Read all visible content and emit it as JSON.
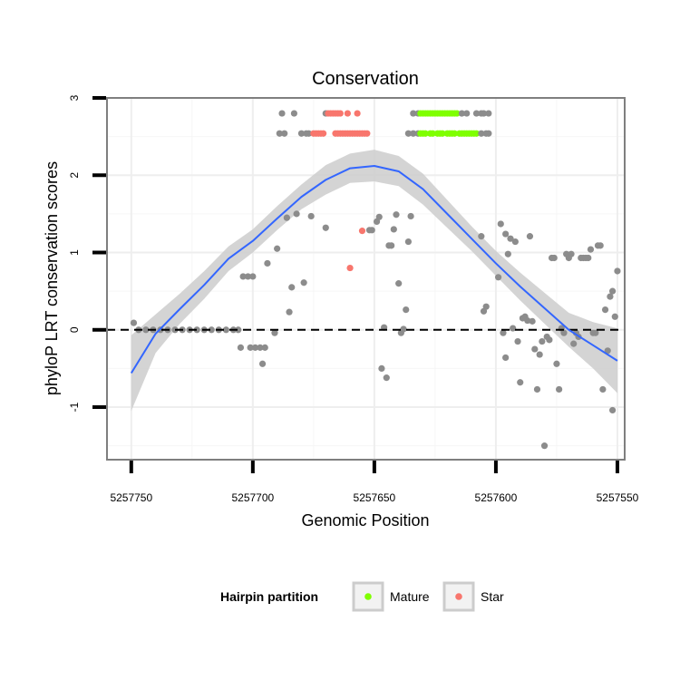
{
  "chart_data": {
    "type": "scatter",
    "title": "Conservation",
    "xlabel": "Genomic Position",
    "ylabel": "phyloP LRT conservation scores",
    "x_reversed": true,
    "xlim": [
      5257760,
      5257547
    ],
    "ylim": [
      -1.68,
      3.0
    ],
    "x_ticks": [
      5257750,
      5257700,
      5257650,
      5257600,
      5257550
    ],
    "x_tick_labels": [
      "5257750",
      "5257700",
      "5257650",
      "5257600",
      "5257550"
    ],
    "y_ticks": [
      -1,
      0,
      1,
      2,
      3
    ],
    "y_tick_labels": [
      "-1",
      "0",
      "1",
      "2",
      "3"
    ],
    "grid": true,
    "reference_line": {
      "y": 0,
      "style": "dashed",
      "color": "#000000"
    },
    "legend": {
      "title": "Hairpin partition",
      "placement": "bottom",
      "entries": [
        {
          "label": "Mature",
          "color": "#7fff00"
        },
        {
          "label": "Star",
          "color": "#f8766d"
        }
      ]
    },
    "colors": {
      "other": "#8c8c8c",
      "Mature": "#7fff00",
      "Star": "#f8766d",
      "smooth": "#3366ff",
      "band": "#cccccc"
    },
    "smooth_line": {
      "x": [
        5257750,
        5257740,
        5257730,
        5257720,
        5257710,
        5257700,
        5257690,
        5257680,
        5257670,
        5257660,
        5257650,
        5257640,
        5257630,
        5257620,
        5257610,
        5257600,
        5257590,
        5257580,
        5257570,
        5257560,
        5257550
      ],
      "y": [
        -0.56,
        -0.05,
        0.27,
        0.58,
        0.92,
        1.15,
        1.44,
        1.72,
        1.94,
        2.09,
        2.12,
        2.05,
        1.82,
        1.5,
        1.18,
        0.86,
        0.56,
        0.28,
        0.0,
        -0.2,
        -0.4
      ],
      "lower": [
        -1.05,
        -0.3,
        0.08,
        0.4,
        0.76,
        1.0,
        1.29,
        1.56,
        1.75,
        1.9,
        1.92,
        1.86,
        1.62,
        1.32,
        1.02,
        0.7,
        0.38,
        0.08,
        -0.22,
        -0.5,
        -0.82
      ],
      "upper": [
        -0.07,
        0.2,
        0.47,
        0.76,
        1.08,
        1.3,
        1.6,
        1.88,
        2.13,
        2.28,
        2.33,
        2.25,
        2.02,
        1.68,
        1.34,
        1.02,
        0.74,
        0.48,
        0.22,
        0.1,
        0.02
      ]
    },
    "points": [
      {
        "x": 5257749,
        "y": 0.09,
        "g": "other"
      },
      {
        "x": 5257747,
        "y": 0.0,
        "g": "other"
      },
      {
        "x": 5257744,
        "y": 0.0,
        "g": "other"
      },
      {
        "x": 5257741,
        "y": 0.0,
        "g": "other"
      },
      {
        "x": 5257738,
        "y": 0.0,
        "g": "other"
      },
      {
        "x": 5257735,
        "y": 0.0,
        "g": "other"
      },
      {
        "x": 5257732,
        "y": 0.0,
        "g": "other"
      },
      {
        "x": 5257729,
        "y": 0.0,
        "g": "other"
      },
      {
        "x": 5257726,
        "y": 0.0,
        "g": "other"
      },
      {
        "x": 5257723,
        "y": 0.0,
        "g": "other"
      },
      {
        "x": 5257720,
        "y": 0.0,
        "g": "other"
      },
      {
        "x": 5257717,
        "y": 0.0,
        "g": "other"
      },
      {
        "x": 5257714,
        "y": 0.0,
        "g": "other"
      },
      {
        "x": 5257711,
        "y": 0.0,
        "g": "other"
      },
      {
        "x": 5257708,
        "y": 0.0,
        "g": "other"
      },
      {
        "x": 5257706,
        "y": 0.0,
        "g": "other"
      },
      {
        "x": 5257705,
        "y": -0.23,
        "g": "other"
      },
      {
        "x": 5257704,
        "y": 0.69,
        "g": "other"
      },
      {
        "x": 5257702,
        "y": 0.69,
        "g": "other"
      },
      {
        "x": 5257701,
        "y": -0.23,
        "g": "other"
      },
      {
        "x": 5257700,
        "y": 0.69,
        "g": "other"
      },
      {
        "x": 5257699,
        "y": -0.23,
        "g": "other"
      },
      {
        "x": 5257697,
        "y": -0.23,
        "g": "other"
      },
      {
        "x": 5257696,
        "y": -0.44,
        "g": "other"
      },
      {
        "x": 5257695,
        "y": -0.23,
        "g": "other"
      },
      {
        "x": 5257694,
        "y": 0.86,
        "g": "other"
      },
      {
        "x": 5257691,
        "y": -0.04,
        "g": "other"
      },
      {
        "x": 5257690,
        "y": 1.05,
        "g": "other"
      },
      {
        "x": 5257689,
        "y": 2.54,
        "g": "other"
      },
      {
        "x": 5257688,
        "y": 2.8,
        "g": "other"
      },
      {
        "x": 5257687,
        "y": 2.54,
        "g": "other"
      },
      {
        "x": 5257686,
        "y": 1.45,
        "g": "other"
      },
      {
        "x": 5257685,
        "y": 0.23,
        "g": "other"
      },
      {
        "x": 5257684,
        "y": 0.55,
        "g": "other"
      },
      {
        "x": 5257683,
        "y": 2.8,
        "g": "other"
      },
      {
        "x": 5257682,
        "y": 1.5,
        "g": "other"
      },
      {
        "x": 5257680,
        "y": 2.54,
        "g": "other"
      },
      {
        "x": 5257679,
        "y": 0.61,
        "g": "other"
      },
      {
        "x": 5257678,
        "y": 2.54,
        "g": "other"
      },
      {
        "x": 5257677,
        "y": 2.54,
        "g": "other"
      },
      {
        "x": 5257676,
        "y": 1.47,
        "g": "other"
      },
      {
        "x": 5257675,
        "y": 2.54,
        "g": "Star"
      },
      {
        "x": 5257674,
        "y": 2.54,
        "g": "Star"
      },
      {
        "x": 5257673,
        "y": 2.54,
        "g": "Star"
      },
      {
        "x": 5257672,
        "y": 2.54,
        "g": "Star"
      },
      {
        "x": 5257671,
        "y": 2.54,
        "g": "Star"
      },
      {
        "x": 5257670,
        "y": 2.8,
        "g": "other"
      },
      {
        "x": 5257670,
        "y": 1.32,
        "g": "other"
      },
      {
        "x": 5257669,
        "y": 2.8,
        "g": "Star"
      },
      {
        "x": 5257668,
        "y": 2.8,
        "g": "Star"
      },
      {
        "x": 5257667,
        "y": 2.8,
        "g": "Star"
      },
      {
        "x": 5257666,
        "y": 2.8,
        "g": "Star"
      },
      {
        "x": 5257665,
        "y": 2.8,
        "g": "Star"
      },
      {
        "x": 5257664,
        "y": 2.8,
        "g": "Star"
      },
      {
        "x": 5257666,
        "y": 2.54,
        "g": "Star"
      },
      {
        "x": 5257665,
        "y": 2.54,
        "g": "Star"
      },
      {
        "x": 5257664,
        "y": 2.54,
        "g": "Star"
      },
      {
        "x": 5257663,
        "y": 2.54,
        "g": "Star"
      },
      {
        "x": 5257662,
        "y": 2.54,
        "g": "Star"
      },
      {
        "x": 5257661,
        "y": 2.54,
        "g": "Star"
      },
      {
        "x": 5257660,
        "y": 2.54,
        "g": "Star"
      },
      {
        "x": 5257659,
        "y": 2.54,
        "g": "Star"
      },
      {
        "x": 5257658,
        "y": 2.54,
        "g": "Star"
      },
      {
        "x": 5257657,
        "y": 2.54,
        "g": "Star"
      },
      {
        "x": 5257656,
        "y": 2.54,
        "g": "Star"
      },
      {
        "x": 5257655,
        "y": 2.54,
        "g": "Star"
      },
      {
        "x": 5257654,
        "y": 2.54,
        "g": "Star"
      },
      {
        "x": 5257653,
        "y": 2.54,
        "g": "Star"
      },
      {
        "x": 5257661,
        "y": 2.8,
        "g": "Star"
      },
      {
        "x": 5257657,
        "y": 2.8,
        "g": "Star"
      },
      {
        "x": 5257660,
        "y": 0.8,
        "g": "Star"
      },
      {
        "x": 5257655,
        "y": 1.28,
        "g": "Star"
      },
      {
        "x": 5257652,
        "y": 1.29,
        "g": "other"
      },
      {
        "x": 5257651,
        "y": 1.29,
        "g": "other"
      },
      {
        "x": 5257649,
        "y": 1.4,
        "g": "other"
      },
      {
        "x": 5257648,
        "y": 1.46,
        "g": "other"
      },
      {
        "x": 5257647,
        "y": -0.5,
        "g": "other"
      },
      {
        "x": 5257646,
        "y": 0.03,
        "g": "other"
      },
      {
        "x": 5257645,
        "y": -0.62,
        "g": "other"
      },
      {
        "x": 5257644,
        "y": 1.09,
        "g": "other"
      },
      {
        "x": 5257643,
        "y": 1.09,
        "g": "other"
      },
      {
        "x": 5257642,
        "y": 1.3,
        "g": "other"
      },
      {
        "x": 5257641,
        "y": 1.49,
        "g": "other"
      },
      {
        "x": 5257640,
        "y": 0.6,
        "g": "other"
      },
      {
        "x": 5257639,
        "y": -0.04,
        "g": "other"
      },
      {
        "x": 5257638,
        "y": 0.01,
        "g": "other"
      },
      {
        "x": 5257637,
        "y": 0.26,
        "g": "other"
      },
      {
        "x": 5257636,
        "y": 1.14,
        "g": "other"
      },
      {
        "x": 5257635,
        "y": 1.47,
        "g": "other"
      },
      {
        "x": 5257636,
        "y": 2.54,
        "g": "other"
      },
      {
        "x": 5257634,
        "y": 2.54,
        "g": "other"
      },
      {
        "x": 5257632,
        "y": 2.54,
        "g": "other"
      },
      {
        "x": 5257634,
        "y": 2.8,
        "g": "other"
      },
      {
        "x": 5257632,
        "y": 2.8,
        "g": "other"
      },
      {
        "x": 5257631,
        "y": 2.8,
        "g": "Mature"
      },
      {
        "x": 5257630,
        "y": 2.8,
        "g": "Mature"
      },
      {
        "x": 5257629,
        "y": 2.8,
        "g": "Mature"
      },
      {
        "x": 5257628,
        "y": 2.8,
        "g": "Mature"
      },
      {
        "x": 5257627,
        "y": 2.8,
        "g": "Mature"
      },
      {
        "x": 5257626,
        "y": 2.8,
        "g": "Mature"
      },
      {
        "x": 5257625,
        "y": 2.8,
        "g": "Mature"
      },
      {
        "x": 5257624,
        "y": 2.8,
        "g": "Mature"
      },
      {
        "x": 5257623,
        "y": 2.8,
        "g": "Mature"
      },
      {
        "x": 5257622,
        "y": 2.8,
        "g": "Mature"
      },
      {
        "x": 5257621,
        "y": 2.8,
        "g": "Mature"
      },
      {
        "x": 5257620,
        "y": 2.8,
        "g": "Mature"
      },
      {
        "x": 5257619,
        "y": 2.8,
        "g": "Mature"
      },
      {
        "x": 5257618,
        "y": 2.8,
        "g": "Mature"
      },
      {
        "x": 5257617,
        "y": 2.8,
        "g": "Mature"
      },
      {
        "x": 5257616,
        "y": 2.8,
        "g": "Mature"
      },
      {
        "x": 5257631,
        "y": 2.54,
        "g": "Mature"
      },
      {
        "x": 5257630,
        "y": 2.54,
        "g": "Mature"
      },
      {
        "x": 5257629,
        "y": 2.54,
        "g": "Mature"
      },
      {
        "x": 5257627,
        "y": 2.54,
        "g": "Mature"
      },
      {
        "x": 5257626,
        "y": 2.54,
        "g": "Mature"
      },
      {
        "x": 5257624,
        "y": 2.54,
        "g": "Mature"
      },
      {
        "x": 5257623,
        "y": 2.54,
        "g": "Mature"
      },
      {
        "x": 5257622,
        "y": 2.54,
        "g": "Mature"
      },
      {
        "x": 5257620,
        "y": 2.54,
        "g": "Mature"
      },
      {
        "x": 5257619,
        "y": 2.54,
        "g": "Mature"
      },
      {
        "x": 5257618,
        "y": 2.54,
        "g": "Mature"
      },
      {
        "x": 5257617,
        "y": 2.54,
        "g": "Mature"
      },
      {
        "x": 5257615,
        "y": 2.54,
        "g": "Mature"
      },
      {
        "x": 5257614,
        "y": 2.54,
        "g": "Mature"
      },
      {
        "x": 5257613,
        "y": 2.54,
        "g": "Mature"
      },
      {
        "x": 5257612,
        "y": 2.54,
        "g": "Mature"
      },
      {
        "x": 5257611,
        "y": 2.54,
        "g": "Mature"
      },
      {
        "x": 5257610,
        "y": 2.54,
        "g": "Mature"
      },
      {
        "x": 5257609,
        "y": 2.54,
        "g": "Mature"
      },
      {
        "x": 5257608,
        "y": 2.54,
        "g": "Mature"
      },
      {
        "x": 5257614,
        "y": 2.8,
        "g": "other"
      },
      {
        "x": 5257612,
        "y": 2.8,
        "g": "other"
      },
      {
        "x": 5257608,
        "y": 2.8,
        "g": "other"
      },
      {
        "x": 5257606,
        "y": 2.8,
        "g": "other"
      },
      {
        "x": 5257605,
        "y": 2.8,
        "g": "other"
      },
      {
        "x": 5257603,
        "y": 2.8,
        "g": "other"
      },
      {
        "x": 5257606,
        "y": 2.54,
        "g": "other"
      },
      {
        "x": 5257604,
        "y": 2.54,
        "g": "other"
      },
      {
        "x": 5257603,
        "y": 2.54,
        "g": "other"
      },
      {
        "x": 5257606,
        "y": 1.21,
        "g": "other"
      },
      {
        "x": 5257605,
        "y": 0.24,
        "g": "other"
      },
      {
        "x": 5257604,
        "y": 0.3,
        "g": "other"
      },
      {
        "x": 5257599,
        "y": 0.68,
        "g": "other"
      },
      {
        "x": 5257598,
        "y": 1.37,
        "g": "other"
      },
      {
        "x": 5257597,
        "y": -0.04,
        "g": "other"
      },
      {
        "x": 5257596,
        "y": 1.24,
        "g": "other"
      },
      {
        "x": 5257596,
        "y": -0.36,
        "g": "other"
      },
      {
        "x": 5257595,
        "y": 0.98,
        "g": "other"
      },
      {
        "x": 5257594,
        "y": 1.18,
        "g": "other"
      },
      {
        "x": 5257593,
        "y": 0.02,
        "g": "other"
      },
      {
        "x": 5257592,
        "y": 1.14,
        "g": "other"
      },
      {
        "x": 5257591,
        "y": -0.15,
        "g": "other"
      },
      {
        "x": 5257590,
        "y": -0.68,
        "g": "other"
      },
      {
        "x": 5257589,
        "y": 0.15,
        "g": "other"
      },
      {
        "x": 5257588,
        "y": 0.17,
        "g": "other"
      },
      {
        "x": 5257587,
        "y": 0.12,
        "g": "other"
      },
      {
        "x": 5257586,
        "y": 1.21,
        "g": "other"
      },
      {
        "x": 5257585,
        "y": 0.11,
        "g": "other"
      },
      {
        "x": 5257584,
        "y": -0.25,
        "g": "other"
      },
      {
        "x": 5257583,
        "y": -0.77,
        "g": "other"
      },
      {
        "x": 5257582,
        "y": -0.32,
        "g": "other"
      },
      {
        "x": 5257581,
        "y": -0.15,
        "g": "other"
      },
      {
        "x": 5257580,
        "y": -1.5,
        "g": "other"
      },
      {
        "x": 5257579,
        "y": -0.09,
        "g": "other"
      },
      {
        "x": 5257578,
        "y": -0.13,
        "g": "other"
      },
      {
        "x": 5257577,
        "y": 0.93,
        "g": "other"
      },
      {
        "x": 5257576,
        "y": 0.93,
        "g": "other"
      },
      {
        "x": 5257575,
        "y": -0.44,
        "g": "other"
      },
      {
        "x": 5257574,
        "y": -0.77,
        "g": "other"
      },
      {
        "x": 5257573,
        "y": 0.02,
        "g": "other"
      },
      {
        "x": 5257572,
        "y": -0.04,
        "g": "other"
      },
      {
        "x": 5257571,
        "y": 0.98,
        "g": "other"
      },
      {
        "x": 5257570,
        "y": 0.93,
        "g": "other"
      },
      {
        "x": 5257569,
        "y": 0.98,
        "g": "other"
      },
      {
        "x": 5257568,
        "y": -0.18,
        "g": "other"
      },
      {
        "x": 5257567,
        "y": -0.04,
        "g": "other"
      },
      {
        "x": 5257566,
        "y": -0.09,
        "g": "other"
      },
      {
        "x": 5257565,
        "y": 0.93,
        "g": "other"
      },
      {
        "x": 5257564,
        "y": 0.93,
        "g": "other"
      },
      {
        "x": 5257563,
        "y": 0.93,
        "g": "other"
      },
      {
        "x": 5257562,
        "y": 0.93,
        "g": "other"
      },
      {
        "x": 5257561,
        "y": 1.04,
        "g": "other"
      },
      {
        "x": 5257560,
        "y": -0.04,
        "g": "other"
      },
      {
        "x": 5257559,
        "y": -0.04,
        "g": "other"
      },
      {
        "x": 5257558,
        "y": 1.09,
        "g": "other"
      },
      {
        "x": 5257557,
        "y": 1.09,
        "g": "other"
      },
      {
        "x": 5257556,
        "y": -0.77,
        "g": "other"
      },
      {
        "x": 5257555,
        "y": 0.26,
        "g": "other"
      },
      {
        "x": 5257554,
        "y": -0.27,
        "g": "other"
      },
      {
        "x": 5257553,
        "y": 0.43,
        "g": "other"
      },
      {
        "x": 5257552,
        "y": -1.04,
        "g": "other"
      },
      {
        "x": 5257552,
        "y": 0.5,
        "g": "other"
      },
      {
        "x": 5257551,
        "y": 0.17,
        "g": "other"
      },
      {
        "x": 5257550,
        "y": 0.76,
        "g": "other"
      }
    ]
  }
}
